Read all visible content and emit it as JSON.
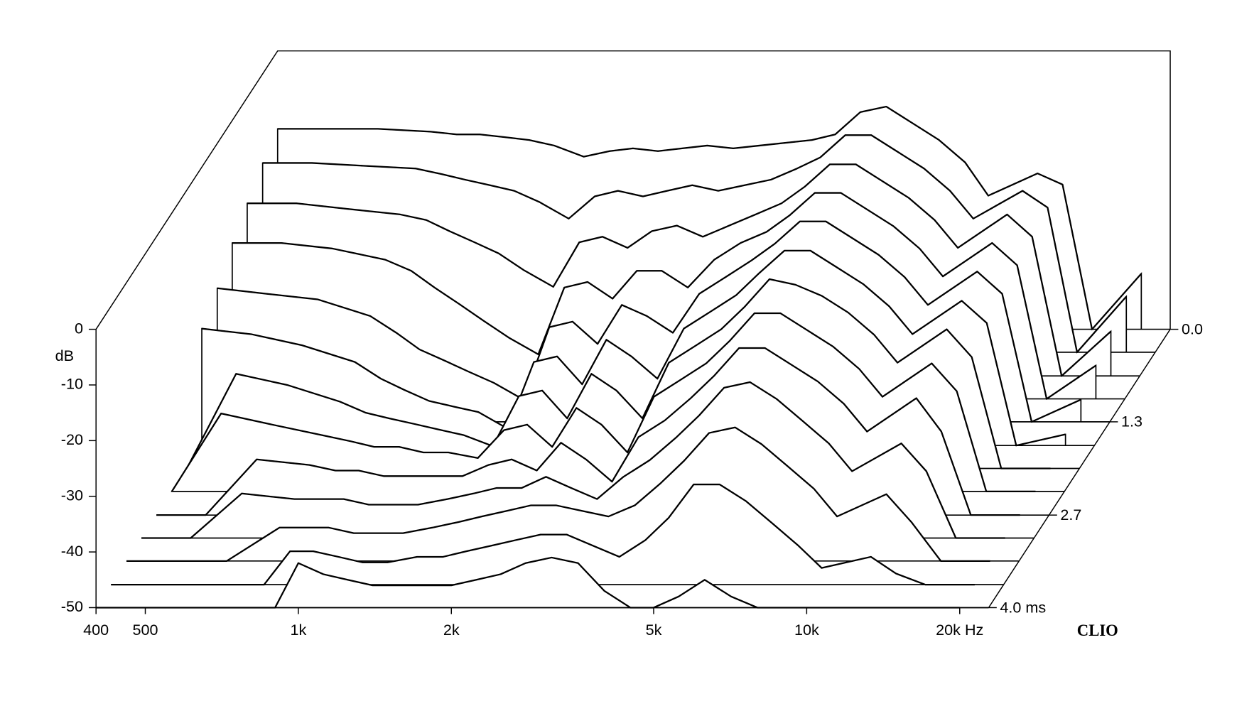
{
  "chart_data": {
    "type": "waterfall",
    "ylabel": "dB",
    "brand": "CLIO",
    "x": [
      400,
      500,
      630,
      800,
      900,
      1000,
      1120,
      1250,
      1400,
      1600,
      1800,
      2000,
      2240,
      2500,
      2800,
      3150,
      3550,
      4000,
      4500,
      5000,
      5600,
      6300,
      7100,
      8000,
      9000,
      10000,
      12500,
      14000,
      16000,
      20000
    ],
    "slices": [
      {
        "time": 0,
        "values": [
          -14,
          -14,
          -14,
          -14.5,
          -15,
          -15,
          -15.5,
          -16,
          -17,
          -19,
          -18,
          -17.5,
          -18,
          -17.5,
          -17,
          -17.5,
          -17,
          -16.5,
          -16,
          -15,
          -11,
          -10,
          -13,
          -16,
          -20,
          -26,
          -22,
          -24,
          -50,
          -40
        ]
      },
      {
        "time": 0.33,
        "values": [
          -16,
          -16,
          -16.5,
          -17,
          -18,
          -19,
          -20,
          -21,
          -23,
          -26,
          -22,
          -21,
          -22,
          -21,
          -20,
          -21,
          -20,
          -19,
          -17,
          -15,
          -11,
          -11,
          -14,
          -17,
          -21,
          -26,
          -21,
          -24,
          -50,
          -40
        ]
      },
      {
        "time": 0.67,
        "values": [
          -19,
          -19,
          -20,
          -21,
          -22,
          -24,
          -26,
          -28,
          -31,
          -34,
          -26,
          -25,
          -27,
          -24,
          -23,
          -25,
          -23,
          -21,
          -19,
          -16,
          -12,
          -12,
          -15,
          -18,
          -22,
          -27,
          -21,
          -25,
          -50,
          -42
        ]
      },
      {
        "time": 1.0,
        "values": [
          -22,
          -22,
          -23,
          -25,
          -27,
          -30,
          -33,
          -36,
          -39,
          -42,
          -30,
          -29,
          -32,
          -27,
          -27,
          -30,
          -25,
          -22,
          -20,
          -17,
          -13,
          -13,
          -16,
          -19,
          -23,
          -28,
          -22,
          -26,
          -50,
          -44
        ]
      },
      {
        "time": 1.33,
        "values": [
          -26,
          -27,
          -28,
          -31,
          -34,
          -37,
          -39,
          -41,
          -43,
          -46,
          -33,
          -32,
          -36,
          -29,
          -31,
          -34,
          -27,
          -24,
          -21,
          -18,
          -14,
          -14,
          -17,
          -20,
          -24,
          -29,
          -23,
          -27,
          -50,
          -46
        ]
      },
      {
        "time": 1.67,
        "values": [
          -29,
          -30,
          -32,
          -35,
          -38,
          -40,
          -42,
          -43,
          -44,
          -47,
          -35,
          -34,
          -39,
          -31,
          -34,
          -38,
          -29,
          -26,
          -23,
          -19,
          -15,
          -15,
          -18,
          -21,
          -25,
          -30,
          -24,
          -28,
          -50,
          -48
        ]
      },
      {
        "time": 2.0,
        "values": [
          -50,
          -33,
          -35,
          -38,
          -40,
          -41,
          -42,
          -43,
          -44,
          -46,
          -37,
          -36,
          -41,
          -33,
          -36,
          -41,
          -31,
          -28,
          -25,
          -21,
          -16,
          -17,
          -19,
          -22,
          -26,
          -31,
          -25,
          -30,
          -50,
          -50
        ]
      },
      {
        "time": 2.33,
        "values": [
          -50,
          -36,
          -38,
          -40,
          -41,
          -42,
          -42,
          -43,
          -43,
          -44,
          -39,
          -38,
          -42,
          -35,
          -38,
          -43,
          -33,
          -30,
          -27,
          -23,
          -18,
          -18,
          -21,
          -24,
          -28,
          -33,
          -27,
          -32,
          -50,
          -50
        ]
      },
      {
        "time": 2.67,
        "values": [
          -50,
          -50,
          -40,
          -41,
          -42,
          -42,
          -43,
          -43,
          -43,
          -43,
          -41,
          -40,
          -42,
          -37,
          -40,
          -44,
          -36,
          -33,
          -29,
          -25,
          -20,
          -20,
          -23,
          -26,
          -30,
          -35,
          -29,
          -35,
          -50,
          -50
        ]
      },
      {
        "time": 3.0,
        "values": [
          -50,
          -50,
          -42,
          -43,
          -43,
          -43,
          -44,
          -44,
          -44,
          -43,
          -42,
          -41,
          -41,
          -39,
          -41,
          -43,
          -39,
          -36,
          -32,
          -28,
          -23,
          -22,
          -25,
          -29,
          -33,
          -38,
          -33,
          -38,
          -50,
          -50
        ]
      },
      {
        "time": 3.33,
        "values": [
          -50,
          -50,
          -50,
          -44,
          -44,
          -44,
          -45,
          -45,
          -45,
          -44,
          -43,
          -42,
          -41,
          -40,
          -40,
          -41,
          -42,
          -40,
          -36,
          -32,
          -27,
          -26,
          -29,
          -33,
          -37,
          -42,
          -38,
          -43,
          -50,
          -50
        ]
      },
      {
        "time": 3.67,
        "values": [
          -50,
          -50,
          -50,
          -50,
          -44,
          -44,
          -45,
          -46,
          -46,
          -45,
          -45,
          -44,
          -43,
          -42,
          -41,
          -41,
          -43,
          -45,
          -42,
          -38,
          -32,
          -32,
          -35,
          -39,
          -43,
          -47,
          -45,
          -48,
          -50,
          -50
        ]
      },
      {
        "time": 4.0,
        "values": [
          -50,
          -50,
          -50,
          -50,
          -50,
          -42,
          -44,
          -45,
          -46,
          -46,
          -46,
          -46,
          -45,
          -44,
          -42,
          -41,
          -42,
          -47,
          -50,
          -50,
          -48,
          -45,
          -48,
          -50,
          -50,
          -50,
          -50,
          -50,
          -50,
          -50
        ]
      }
    ],
    "color": "#000000",
    "xscale": "log",
    "xlim": [
      400,
      22800
    ],
    "xticks": [
      400,
      500,
      {
        "value": 1000,
        "label": "1k"
      },
      {
        "value": 2000,
        "label": "2k"
      },
      {
        "value": 5000,
        "label": "5k"
      },
      {
        "value": 10000,
        "label": "10k"
      },
      {
        "value": 20000,
        "label": "20k Hz"
      }
    ],
    "ylim": [
      -50,
      0
    ],
    "yticks": [
      0,
      -10,
      -20,
      -30,
      -40,
      -50
    ],
    "zlim": [
      0,
      4
    ],
    "zticks": [
      {
        "value": 0,
        "label": "0.0"
      },
      {
        "value": 1.33,
        "label": "1.3"
      },
      {
        "value": 2.67,
        "label": "2.7"
      },
      {
        "value": 4,
        "label": "4.0 ms"
      }
    ]
  }
}
